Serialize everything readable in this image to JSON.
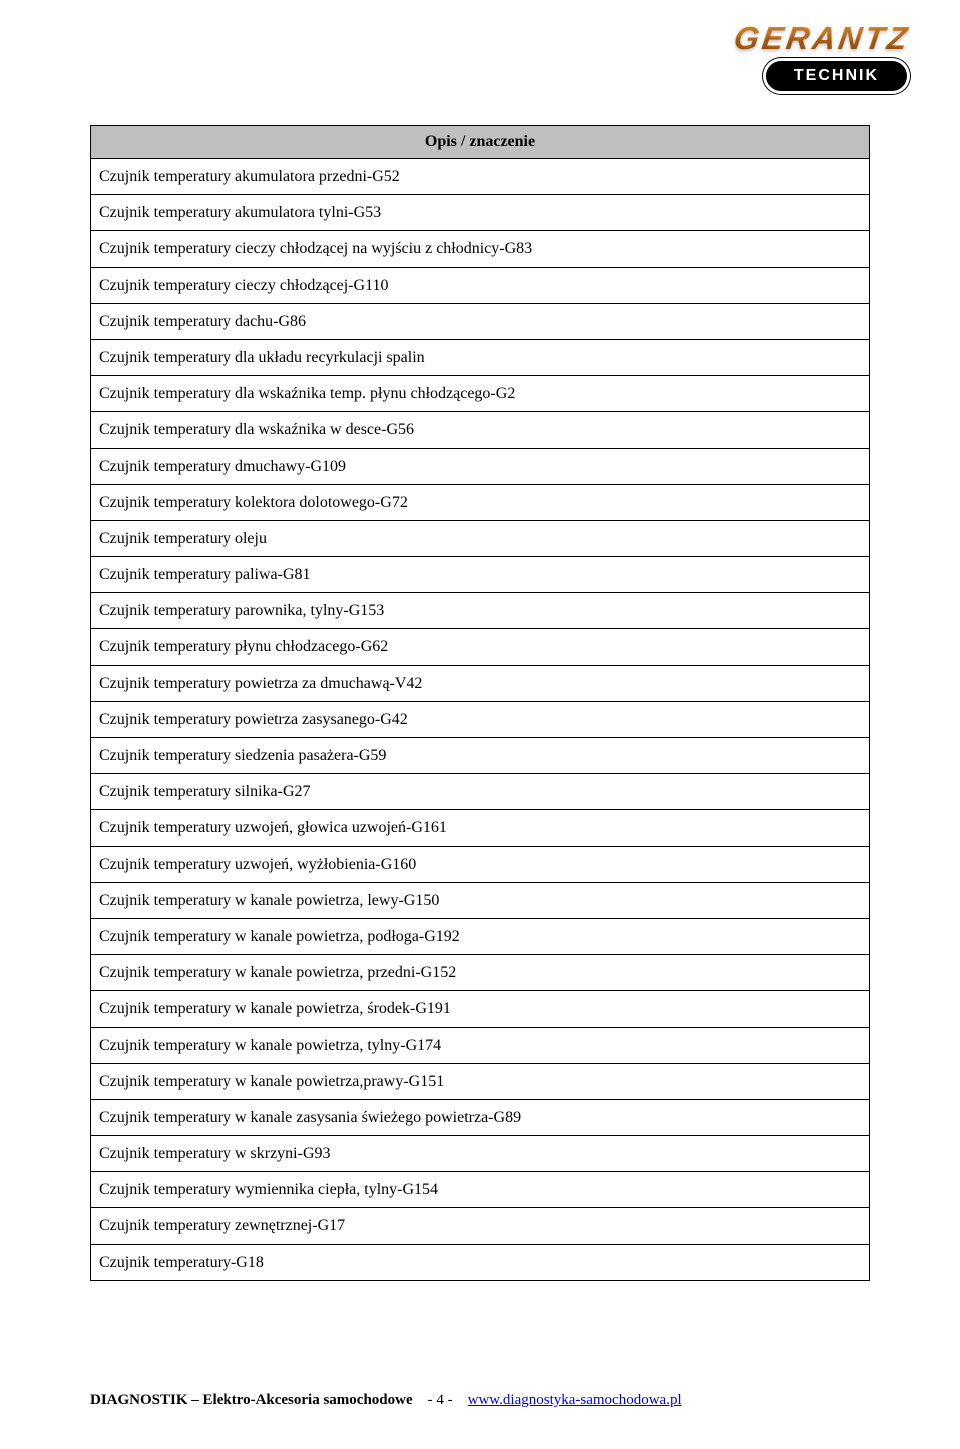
{
  "logo": {
    "brand": "GERANTZ",
    "sub": "TECHNIK"
  },
  "table": {
    "header": "Opis / znaczenie",
    "header_bg": "#bfbfbf",
    "border_color": "#000000",
    "font_family": "Times New Roman",
    "font_size_pt": 12,
    "rows": [
      "Czujnik temperatury akumulatora przedni-G52",
      "Czujnik temperatury akumulatora tylni-G53",
      "Czujnik temperatury cieczy chłodzącej na wyjściu z chłodnicy-G83",
      "Czujnik temperatury cieczy chłodzącej-G110",
      "Czujnik temperatury dachu-G86",
      "Czujnik temperatury dla układu recyrkulacji spalin",
      "Czujnik temperatury dla wskaźnika temp. płynu chłodzącego-G2",
      "Czujnik temperatury dla wskaźnika w desce-G56",
      "Czujnik temperatury dmuchawy-G109",
      "Czujnik temperatury kolektora dolotowego-G72",
      "Czujnik temperatury oleju",
      "Czujnik temperatury paliwa-G81",
      "Czujnik temperatury parownika, tylny-G153",
      "Czujnik temperatury płynu chłodzacego-G62",
      "Czujnik temperatury powietrza za dmuchawą-V42",
      "Czujnik temperatury powietrza zasysanego-G42",
      "Czujnik temperatury siedzenia pasażera-G59",
      "Czujnik temperatury silnika-G27",
      "Czujnik temperatury uzwojeń, głowica uzwojeń-G161",
      "Czujnik temperatury uzwojeń, wyżłobienia-G160",
      "Czujnik temperatury w kanale powietrza, lewy-G150",
      "Czujnik temperatury w kanale powietrza, podłoga-G192",
      "Czujnik temperatury w kanale powietrza, przedni-G152",
      "Czujnik temperatury w kanale powietrza, środek-G191",
      "Czujnik temperatury w kanale powietrza, tylny-G174",
      "Czujnik temperatury w kanale powietrza,prawy-G151",
      "Czujnik temperatury w kanale zasysania świeżego powietrza-G89",
      "Czujnik temperatury w skrzyni-G93",
      "Czujnik temperatury wymiennika ciepła, tylny-G154",
      "Czujnik temperatury zewnętrznej-G17",
      "Czujnik temperatury-G18"
    ]
  },
  "footer": {
    "left": "DIAGNOSTIK – Elektro-Akcesoria samochodowe",
    "page": "- 4 -",
    "link_text": "www.diagnostyka-samochodowa.pl",
    "link_color": "#0000ee"
  }
}
